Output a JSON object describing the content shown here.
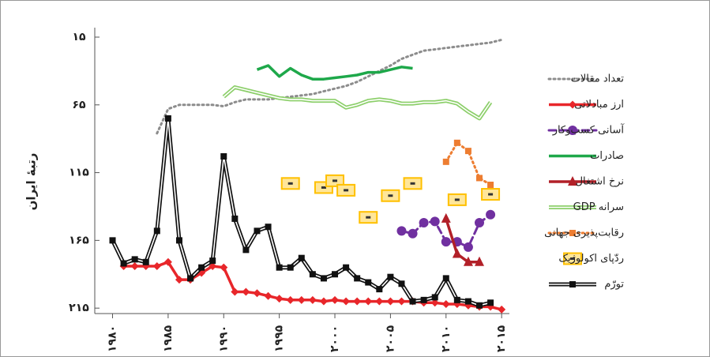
{
  "chart_data": {
    "type": "line",
    "y_label": "رتبۀ ایران",
    "xlim": [
      1978.4,
      2015.7
    ],
    "xticks": [
      {
        "value": 1980,
        "label": "۱۹۸۰"
      },
      {
        "value": 1985,
        "label": "۱۹۸۵"
      },
      {
        "value": 1990,
        "label": "۱۹۹۰"
      },
      {
        "value": 1995,
        "label": "۱۹۹۵"
      },
      {
        "value": 2000,
        "label": "۲۰۰۰"
      },
      {
        "value": 2005,
        "label": "۲۰۰۵"
      },
      {
        "value": 2010,
        "label": "۲۰۱۰"
      },
      {
        "value": 2015,
        "label": "۲۰۱۵"
      }
    ],
    "ylim": [
      8,
      219
    ],
    "y_inverted": true,
    "yticks": [
      {
        "value": 15,
        "label": "۱۵"
      },
      {
        "value": 65,
        "label": "۶۵"
      },
      {
        "value": 115,
        "label": "۱۱۵"
      },
      {
        "value": 165,
        "label": "۱۶۵"
      },
      {
        "value": 215,
        "label": "۲۱۵"
      }
    ],
    "series": [
      {
        "name": "تعداد مقالات",
        "color": "#8c8c8c",
        "dash": "dotted",
        "marker": "none",
        "double": false,
        "line": true,
        "x": [
          1984,
          1985,
          1986,
          1987,
          1988,
          1989,
          1990,
          1991,
          1992,
          1993,
          1994,
          1995,
          1996,
          1997,
          1998,
          1999,
          2000,
          2001,
          2002,
          2003,
          2004,
          2005,
          2006,
          2007,
          2008,
          2009,
          2010,
          2011,
          2012,
          2013,
          2014,
          2015
        ],
        "values": [
          86,
          68,
          65,
          65,
          65,
          65,
          66,
          63,
          61,
          61,
          61,
          60,
          59,
          58,
          57,
          55,
          53,
          51,
          48,
          44,
          40,
          36,
          31,
          28,
          25,
          24,
          23,
          22,
          21,
          20,
          19,
          17
        ]
      },
      {
        "name": "ارز مبادلاتی",
        "color": "#e8262a",
        "dash": "solid",
        "marker": "diamond",
        "double": false,
        "line": true,
        "x": [
          1981,
          1982,
          1983,
          1984,
          1985,
          1986,
          1987,
          1988,
          1989,
          1990,
          1991,
          1992,
          1993,
          1994,
          1995,
          1996,
          1997,
          1998,
          1999,
          2000,
          2001,
          2002,
          2003,
          2004,
          2005,
          2006,
          2007,
          2008,
          2009,
          2010,
          2011,
          2012,
          2013,
          2014,
          2015
        ],
        "values": [
          184,
          184,
          184,
          184,
          181,
          194,
          194,
          189,
          184,
          185,
          203,
          203,
          204,
          206,
          208,
          209,
          209,
          209,
          210,
          209,
          210,
          210,
          210,
          210,
          210,
          210,
          210,
          211,
          211,
          212,
          212,
          213,
          214,
          214,
          216
        ]
      },
      {
        "name": "آسانی کسب‌وکار",
        "color": "#7030a0",
        "dash": "dashed",
        "marker": "circle",
        "double": false,
        "line": true,
        "x": [
          2006,
          2007,
          2008,
          2009,
          2010,
          2011,
          2012,
          2013,
          2014
        ],
        "values": [
          158,
          160,
          152,
          151,
          166,
          166,
          170,
          152,
          146
        ]
      },
      {
        "name": "صادرات",
        "color": "#1ea84a",
        "dash": "solid",
        "marker": "none",
        "double": false,
        "line": true,
        "x": [
          1993,
          1994,
          1995,
          1996,
          1997,
          1998,
          1999,
          2000,
          2001,
          2002,
          2003,
          2004,
          2005,
          2006,
          2007
        ],
        "values": [
          39,
          36,
          44,
          38,
          43,
          46,
          46,
          45,
          44,
          43,
          41,
          41,
          39,
          37,
          38
        ]
      },
      {
        "name": "نرخ اشتغال",
        "color": "#b22028",
        "dash": "solid",
        "marker": "triangle",
        "double": false,
        "line": true,
        "x": [
          2010,
          2011,
          2012,
          2013
        ],
        "values": [
          149,
          175,
          181,
          181
        ]
      },
      {
        "name": "سرانه GDP",
        "color": "#8ccf6a",
        "dash": "solid",
        "marker": "none",
        "double": true,
        "line": true,
        "x": [
          1990,
          1991,
          1992,
          1993,
          1994,
          1995,
          1996,
          1997,
          1998,
          1999,
          2000,
          2001,
          2002,
          2003,
          2004,
          2005,
          2006,
          2007,
          2008,
          2009,
          2010,
          2011,
          2012,
          2013,
          2014
        ],
        "values": [
          59,
          52,
          54,
          56,
          58,
          60,
          61,
          61,
          62,
          62,
          62,
          67,
          65,
          62,
          61,
          62,
          64,
          64,
          63,
          63,
          62,
          64,
          70,
          75,
          63
        ]
      },
      {
        "name": "رقابت‌پذیری جهانی",
        "color": "#ed7d31",
        "dash": "dotted",
        "marker": "square",
        "double": false,
        "line": true,
        "x": [
          2010,
          2011,
          2012,
          2013,
          2014
        ],
        "values": [
          107,
          93,
          99,
          119,
          124
        ]
      },
      {
        "name": "ردّپای اکولوژیک",
        "color": "#ffc000",
        "dash": "solid",
        "marker": "box",
        "double": false,
        "line": false,
        "x": [
          1996,
          1999,
          2000,
          2001,
          2003,
          2005,
          2007,
          2011,
          2014
        ],
        "values": [
          123,
          126,
          121,
          128,
          148,
          132,
          123,
          135,
          131
        ]
      },
      {
        "name": "تورّم",
        "color": "#111111",
        "dash": "solid",
        "marker": "square",
        "double": true,
        "line": true,
        "x": [
          1980,
          1981,
          1982,
          1983,
          1984,
          1985,
          1986,
          1987,
          1988,
          1989,
          1990,
          1991,
          1992,
          1993,
          1994,
          1995,
          1996,
          1997,
          1998,
          1999,
          2000,
          2001,
          2002,
          2003,
          2004,
          2005,
          2006,
          2007,
          2008,
          2009,
          2010,
          2011,
          2012,
          2013,
          2014
        ],
        "values": [
          165,
          182,
          179,
          181,
          158,
          75,
          165,
          193,
          185,
          180,
          103,
          149,
          172,
          158,
          155,
          185,
          185,
          178,
          190,
          193,
          190,
          185,
          193,
          196,
          201,
          192,
          197,
          210,
          209,
          207,
          193,
          209,
          210,
          213,
          211
        ]
      }
    ]
  }
}
